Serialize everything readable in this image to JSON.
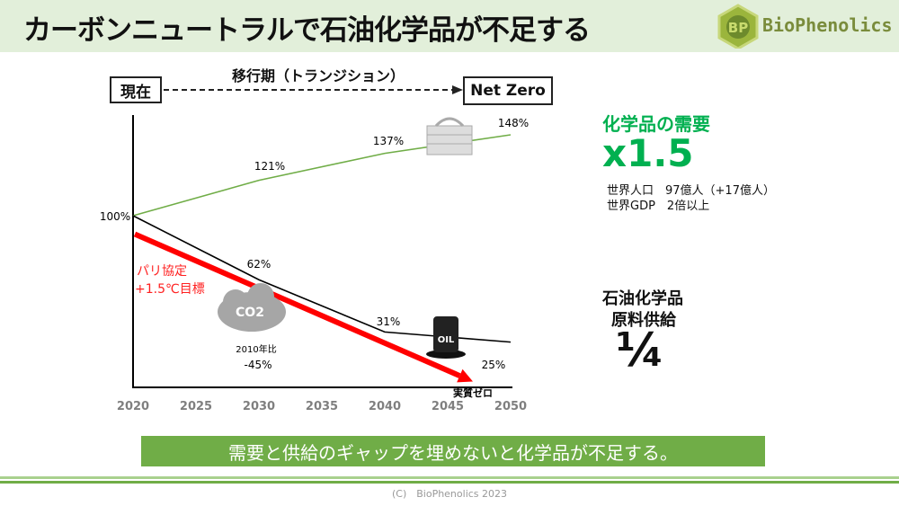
{
  "header": {
    "title": "カーボンニュートラルで石油化学品が不足する",
    "logo_text": "BioPhenolics",
    "logo_mark": "BP"
  },
  "timeline": {
    "start": "現在",
    "middle": "移行期（トランジション）",
    "end": "Net Zero"
  },
  "chart_data": {
    "type": "line",
    "x": [
      2020,
      2025,
      2030,
      2035,
      2040,
      2045,
      2050
    ],
    "xlim": [
      2020,
      2050
    ],
    "series": [
      {
        "points": [
          [
            2020,
            100
          ],
          [
            2030,
            121
          ],
          [
            2040,
            137
          ],
          [
            2050,
            148
          ]
        ],
        "labels": [
          "100%",
          "121%",
          "137%",
          "148%"
        ],
        "color": "#70ad47"
      },
      {
        "points": [
          [
            2020,
            100
          ],
          [
            2030,
            62
          ],
          [
            2040,
            31
          ],
          [
            2050,
            25
          ]
        ],
        "labels": [
          "62%",
          "31%",
          "25%"
        ],
        "color": "#000000"
      },
      {
        "points": [
          [
            2020,
            88
          ],
          [
            2047,
            0
          ]
        ],
        "color": "#ff0000",
        "arrow": true
      }
    ],
    "annotations": {
      "paris": "パリ協定",
      "paris_target": "+1.5℃目標",
      "co2_base": "2010年比",
      "co2_value": "-45%",
      "net_zero": "実質ゼロ",
      "co2_icon": "CO2",
      "oil_icon": "OIL"
    },
    "grid": false
  },
  "demand": {
    "title": "化学品の需要",
    "multiplier": "x1.5",
    "line1": "世界人口　97億人（+17億人）",
    "line2": "世界GDP　2倍以上"
  },
  "supply": {
    "title1": "石油化学品",
    "title2": "原料供給",
    "value": "¼"
  },
  "banner": "需要と供給のギャップを埋めないと化学品が不足する。",
  "footer": "(C)　BioPhenolics 2023"
}
